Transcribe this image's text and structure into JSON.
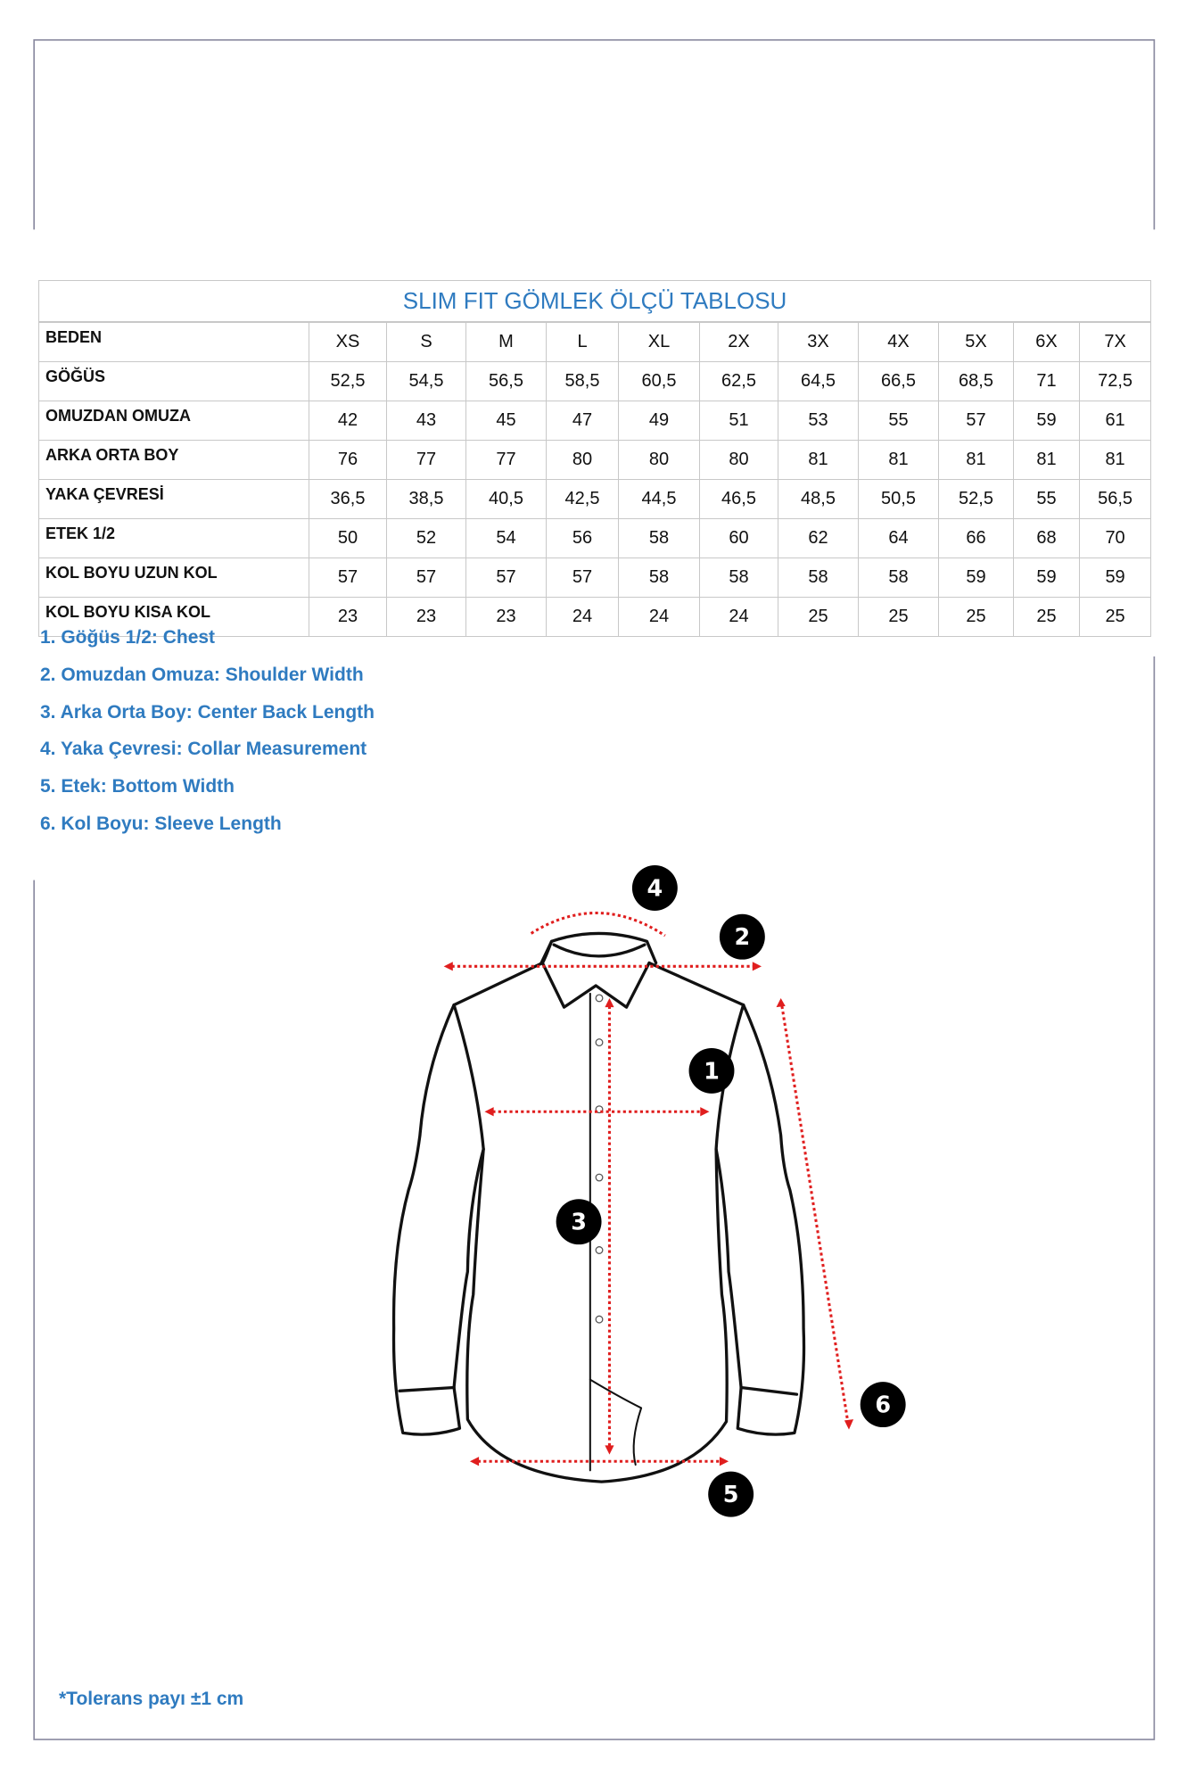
{
  "table": {
    "title": "SLIM FIT GÖMLEK ÖLÇÜ TABLOSU",
    "header_label": "BEDEN",
    "sizes": [
      "XS",
      "S",
      "M",
      "L",
      "XL",
      "2X",
      "3X",
      "4X",
      "5X",
      "6X",
      "7X"
    ],
    "rows": [
      {
        "label": "GÖĞÜS",
        "values": [
          "52,5",
          "54,5",
          "56,5",
          "58,5",
          "60,5",
          "62,5",
          "64,5",
          "66,5",
          "68,5",
          "71",
          "72,5"
        ]
      },
      {
        "label": "OMUZDAN OMUZA",
        "values": [
          "42",
          "43",
          "45",
          "47",
          "49",
          "51",
          "53",
          "55",
          "57",
          "59",
          "61"
        ]
      },
      {
        "label": "ARKA ORTA BOY",
        "values": [
          "76",
          "77",
          "77",
          "80",
          "80",
          "80",
          "81",
          "81",
          "81",
          "81",
          "81"
        ]
      },
      {
        "label": "YAKA ÇEVRESİ",
        "values": [
          "36,5",
          "38,5",
          "40,5",
          "42,5",
          "44,5",
          "46,5",
          "48,5",
          "50,5",
          "52,5",
          "55",
          "56,5"
        ]
      },
      {
        "label": "ETEK 1/2",
        "values": [
          "50",
          "52",
          "54",
          "56",
          "58",
          "60",
          "62",
          "64",
          "66",
          "68",
          "70"
        ]
      },
      {
        "label": "KOL BOYU UZUN KOL",
        "values": [
          "57",
          "57",
          "57",
          "57",
          "58",
          "58",
          "58",
          "58",
          "59",
          "59",
          "59"
        ]
      },
      {
        "label": "KOL BOYU KISA KOL",
        "values": [
          "23",
          "23",
          "23",
          "24",
          "24",
          "24",
          "25",
          "25",
          "25",
          "25",
          "25"
        ]
      }
    ]
  },
  "legend": [
    "1. Göğüs 1/2: Chest",
    "2. Omuzdan Omuza: Shoulder Width",
    "3. Arka Orta Boy: Center Back Length",
    "4. Yaka Çevresi: Collar Measurement",
    "5. Etek: Bottom Width",
    "6. Kol Boyu: Sleeve Length"
  ],
  "diagram": {
    "badges": [
      "1",
      "2",
      "3",
      "4",
      "5",
      "6"
    ],
    "arrow_color": "#e01e1e",
    "badge_color": "#000000"
  },
  "note": "*Tolerans payı ±1 cm",
  "colors": {
    "accent": "#2f7bc0",
    "frame": "#8a8aa0",
    "grid": "#c8c8c8"
  }
}
